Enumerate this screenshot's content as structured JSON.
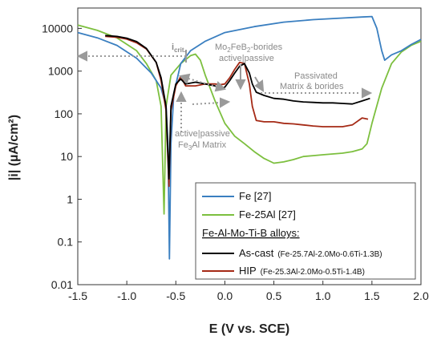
{
  "chart_data": {
    "type": "line",
    "xlabel": "E (V vs. SCE)",
    "ylabel_parts": [
      "|i| (µA/cm²)"
    ],
    "xlim": [
      -1.5,
      2.0
    ],
    "ylim_log": [
      0.01,
      30000
    ],
    "log_y": true,
    "x_ticks": [
      -1.5,
      -1.0,
      -0.5,
      0.0,
      0.5,
      1.0,
      1.5,
      2.0
    ],
    "x_tick_labels": [
      "-1.5",
      "-1.0",
      "-0.5",
      "0.0",
      "0.5",
      "1.0",
      "1.5",
      "2.0"
    ],
    "y_ticks": [
      0.01,
      0.1,
      1,
      10,
      100,
      1000,
      10000
    ],
    "y_tick_labels": [
      "0.01",
      "0.1",
      "1",
      "10",
      "100",
      "1000",
      "10000"
    ],
    "series": [
      {
        "name": "Fe [27]",
        "color": "#3a7fc0",
        "points": [
          [
            -1.5,
            8000
          ],
          [
            -1.3,
            6000
          ],
          [
            -1.1,
            4000
          ],
          [
            -0.9,
            2000
          ],
          [
            -0.75,
            900
          ],
          [
            -0.65,
            400
          ],
          [
            -0.6,
            150
          ],
          [
            -0.58,
            20
          ],
          [
            -0.565,
            0.04
          ],
          [
            -0.55,
            20
          ],
          [
            -0.52,
            300
          ],
          [
            -0.45,
            1500
          ],
          [
            -0.35,
            3000
          ],
          [
            -0.2,
            5000
          ],
          [
            0.0,
            8000
          ],
          [
            0.3,
            11000
          ],
          [
            0.6,
            14000
          ],
          [
            0.9,
            16000
          ],
          [
            1.2,
            17500
          ],
          [
            1.4,
            18500
          ],
          [
            1.5,
            19000
          ],
          [
            1.55,
            10000
          ],
          [
            1.6,
            3000
          ],
          [
            1.63,
            1800
          ],
          [
            1.7,
            2400
          ],
          [
            1.8,
            3000
          ],
          [
            1.9,
            4200
          ],
          [
            2.0,
            5500
          ]
        ]
      },
      {
        "name": "Fe-25Al [27]",
        "color": "#7cbf3e",
        "points": [
          [
            -1.5,
            12000
          ],
          [
            -1.3,
            9000
          ],
          [
            -1.1,
            6000
          ],
          [
            -0.9,
            3000
          ],
          [
            -0.8,
            1500
          ],
          [
            -0.7,
            600
          ],
          [
            -0.65,
            150
          ],
          [
            -0.62,
            0.45
          ],
          [
            -0.6,
            150
          ],
          [
            -0.55,
            800
          ],
          [
            -0.45,
            1500
          ],
          [
            -0.35,
            2300
          ],
          [
            -0.3,
            2500
          ],
          [
            -0.25,
            1800
          ],
          [
            -0.2,
            800
          ],
          [
            -0.1,
            200
          ],
          [
            0.0,
            60
          ],
          [
            0.1,
            30
          ],
          [
            0.2,
            20
          ],
          [
            0.3,
            13
          ],
          [
            0.4,
            9
          ],
          [
            0.5,
            7
          ],
          [
            0.6,
            7.5
          ],
          [
            0.7,
            8.5
          ],
          [
            0.8,
            10
          ],
          [
            0.9,
            10.5
          ],
          [
            1.0,
            11
          ],
          [
            1.1,
            11.5
          ],
          [
            1.2,
            12
          ],
          [
            1.3,
            13
          ],
          [
            1.4,
            15
          ],
          [
            1.45,
            20
          ],
          [
            1.5,
            60
          ],
          [
            1.6,
            400
          ],
          [
            1.7,
            1500
          ],
          [
            1.8,
            2800
          ],
          [
            1.9,
            4000
          ],
          [
            2.0,
            5000
          ]
        ]
      },
      {
        "name": "As-cast",
        "color": "#000000",
        "points": [
          [
            -1.22,
            6800
          ],
          [
            -1.1,
            6500
          ],
          [
            -1.0,
            5900
          ],
          [
            -0.9,
            4900
          ],
          [
            -0.8,
            3400
          ],
          [
            -0.7,
            1600
          ],
          [
            -0.65,
            700
          ],
          [
            -0.6,
            150
          ],
          [
            -0.57,
            3
          ],
          [
            -0.55,
            150
          ],
          [
            -0.5,
            500
          ],
          [
            -0.45,
            650
          ],
          [
            -0.4,
            500
          ],
          [
            -0.3,
            550
          ],
          [
            -0.2,
            500
          ],
          [
            -0.1,
            450
          ],
          [
            -0.05,
            380
          ],
          [
            0.0,
            420
          ],
          [
            0.05,
            600
          ],
          [
            0.1,
            900
          ],
          [
            0.15,
            1300
          ],
          [
            0.2,
            1500
          ],
          [
            0.25,
            900
          ],
          [
            0.28,
            500
          ],
          [
            0.32,
            320
          ],
          [
            0.4,
            270
          ],
          [
            0.5,
            230
          ],
          [
            0.6,
            220
          ],
          [
            0.7,
            200
          ],
          [
            0.8,
            190
          ],
          [
            0.9,
            185
          ],
          [
            1.0,
            180
          ],
          [
            1.1,
            180
          ],
          [
            1.2,
            175
          ],
          [
            1.3,
            170
          ],
          [
            1.4,
            200
          ],
          [
            1.48,
            230
          ]
        ]
      },
      {
        "name": "HIP",
        "color": "#a52a16",
        "points": [
          [
            -1.22,
            6500
          ],
          [
            -1.1,
            6200
          ],
          [
            -1.0,
            5600
          ],
          [
            -0.9,
            4600
          ],
          [
            -0.8,
            3300
          ],
          [
            -0.7,
            1600
          ],
          [
            -0.65,
            600
          ],
          [
            -0.6,
            120
          ],
          [
            -0.57,
            2
          ],
          [
            -0.55,
            120
          ],
          [
            -0.5,
            450
          ],
          [
            -0.45,
            750
          ],
          [
            -0.4,
            450
          ],
          [
            -0.3,
            450
          ],
          [
            -0.2,
            500
          ],
          [
            -0.1,
            500
          ],
          [
            -0.05,
            480
          ],
          [
            0.0,
            500
          ],
          [
            0.05,
            700
          ],
          [
            0.1,
            1100
          ],
          [
            0.15,
            1600
          ],
          [
            0.2,
            1500
          ],
          [
            0.25,
            500
          ],
          [
            0.28,
            150
          ],
          [
            0.32,
            70
          ],
          [
            0.4,
            65
          ],
          [
            0.5,
            65
          ],
          [
            0.6,
            60
          ],
          [
            0.7,
            58
          ],
          [
            0.8,
            55
          ],
          [
            0.9,
            52
          ],
          [
            1.0,
            50
          ],
          [
            1.1,
            50
          ],
          [
            1.2,
            50
          ],
          [
            1.3,
            55
          ],
          [
            1.4,
            80
          ],
          [
            1.46,
            75
          ]
        ]
      }
    ],
    "annotations": {
      "i_crit": "i",
      "i_crit_sub": "crit.",
      "borides": "Mo",
      "borides_sub1": "2",
      "borides_mid": "FeB",
      "borides_sub2": "2",
      "borides_end": "-borides",
      "active_passive_top": "active|passive",
      "passivated_line1": "Passivated",
      "passivated_line2": "Matrix & borides",
      "active_passive_bottom": "active|passive",
      "fe3al_a": "Fe",
      "fe3al_sub": "3",
      "fe3al_b": "Al Matrix"
    },
    "legend": {
      "items": [
        {
          "label": "Fe [27]",
          "color": "#3a7fc0"
        },
        {
          "label": "Fe-25Al [27]",
          "color": "#7cbf3e"
        }
      ],
      "group_title": "Fe-Al-Mo-Ti-B alloys:",
      "group_items": [
        {
          "label": "As-cast",
          "detail": "(Fe-25.7Al-2.0Mo-0.6Ti-1.3B)",
          "color": "#000000"
        },
        {
          "label": "HIP",
          "detail": "(Fe-25.3Al-2.0Mo-0.5Ti-1.4B)",
          "color": "#a52a16"
        }
      ],
      "placement": "bottom-right"
    }
  }
}
